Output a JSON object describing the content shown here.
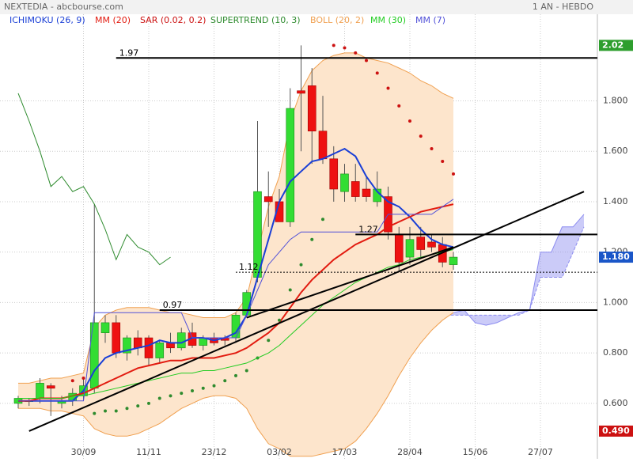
{
  "header": {
    "title": "NEXTEDIA - abcbourse.com",
    "period": "1 AN - HEBDO"
  },
  "chart_data": {
    "type": "candlestick",
    "categories": [
      null,
      null,
      null,
      null,
      null,
      null,
      "30/09",
      null,
      null,
      null,
      null,
      null,
      "11/11",
      null,
      null,
      null,
      null,
      null,
      "23/12",
      null,
      null,
      null,
      null,
      null,
      "03/02",
      null,
      null,
      null,
      null,
      null,
      "17/03",
      null,
      null,
      null,
      null,
      null,
      "28/04",
      null,
      null,
      null,
      null,
      null,
      "15/06",
      null,
      null,
      null,
      null,
      null,
      "27/07",
      null,
      null,
      null,
      null
    ],
    "ylim": [
      0.38,
      2.2
    ],
    "yticks": [
      {
        "value": 0.6,
        "label": "0.600"
      },
      {
        "value": 0.8,
        "label": "0.800"
      },
      {
        "value": 1.0,
        "label": "1.000"
      },
      {
        "value": 1.2,
        "label": "1.200"
      },
      {
        "value": 1.4,
        "label": "1.400"
      },
      {
        "value": 1.6,
        "label": "1.600"
      },
      {
        "value": 1.8,
        "label": "1.800"
      }
    ],
    "grid": true,
    "up_color": "#33dd33",
    "down_color": "#ee1111",
    "open": [
      0.6,
      0.61,
      0.62,
      0.67,
      0.6,
      0.61,
      0.63,
      0.66,
      0.88,
      0.92,
      0.8,
      0.86,
      0.86,
      0.78,
      0.84,
      0.82,
      0.88,
      0.83,
      0.86,
      0.86,
      0.86,
      0.95,
      1.1,
      1.42,
      1.4,
      1.32,
      1.84,
      1.86,
      1.68,
      1.57,
      1.44,
      1.48,
      1.45,
      1.4,
      1.42,
      1.27,
      1.18,
      1.26,
      1.24,
      1.23,
      1.15,
      null,
      null,
      null,
      null,
      null,
      null,
      null,
      null,
      null,
      null,
      null,
      null
    ],
    "high": [
      0.63,
      0.62,
      0.7,
      0.68,
      0.63,
      0.66,
      0.7,
      1.39,
      0.95,
      0.95,
      0.87,
      0.89,
      0.87,
      0.85,
      0.88,
      0.9,
      0.92,
      0.87,
      0.88,
      0.87,
      0.96,
      1.05,
      1.72,
      1.52,
      1.45,
      1.85,
      2.02,
      1.93,
      1.82,
      1.62,
      1.55,
      1.55,
      1.5,
      1.52,
      1.46,
      1.3,
      1.3,
      1.3,
      1.27,
      1.26,
      1.2,
      null,
      null,
      null,
      null,
      null,
      null,
      null,
      null,
      null,
      null,
      null,
      null
    ],
    "low": [
      0.58,
      0.59,
      0.6,
      0.55,
      0.58,
      0.59,
      0.61,
      0.64,
      0.84,
      0.78,
      0.77,
      0.79,
      0.75,
      0.76,
      0.8,
      0.81,
      0.82,
      0.81,
      0.83,
      0.83,
      0.84,
      0.94,
      1.08,
      1.3,
      1.33,
      1.3,
      1.6,
      1.55,
      1.55,
      1.4,
      1.4,
      1.4,
      1.4,
      1.38,
      1.25,
      1.12,
      1.15,
      1.18,
      1.2,
      1.14,
      1.13,
      null,
      null,
      null,
      null,
      null,
      null,
      null,
      null,
      null,
      null,
      null,
      null
    ],
    "close": [
      0.62,
      0.61,
      0.68,
      0.66,
      0.61,
      0.64,
      0.67,
      0.92,
      0.92,
      0.8,
      0.86,
      0.82,
      0.78,
      0.84,
      0.82,
      0.88,
      0.83,
      0.86,
      0.84,
      0.85,
      0.95,
      1.04,
      1.44,
      1.4,
      1.32,
      1.77,
      1.83,
      1.68,
      1.57,
      1.45,
      1.51,
      1.42,
      1.42,
      1.45,
      1.28,
      1.16,
      1.25,
      1.21,
      1.22,
      1.16,
      1.18,
      null,
      null,
      null,
      null,
      null,
      null,
      null,
      null,
      null,
      null,
      null,
      null
    ],
    "series": [
      {
        "name": "ICHIMOKU (26, 9)",
        "kind": "line",
        "color": "#1a3fd6",
        "width": 2,
        "values": [
          0.61,
          0.61,
          0.61,
          0.61,
          0.61,
          0.61,
          0.65,
          0.73,
          0.78,
          0.8,
          0.81,
          0.82,
          0.83,
          0.85,
          0.84,
          0.84,
          0.86,
          0.86,
          0.85,
          0.86,
          0.88,
          0.95,
          1.1,
          1.25,
          1.4,
          1.48,
          1.52,
          1.56,
          1.57,
          1.59,
          1.61,
          1.58,
          1.5,
          1.44,
          1.4,
          1.38,
          1.34,
          1.29,
          1.25,
          1.23,
          1.22,
          null,
          null,
          null,
          null,
          null,
          null,
          null,
          null,
          null,
          null,
          null,
          null
        ],
        "cloud_color": "#8c8cf0",
        "cloud_a": [
          null,
          null,
          null,
          null,
          null,
          null,
          null,
          null,
          null,
          null,
          null,
          null,
          null,
          null,
          null,
          null,
          null,
          null,
          null,
          null,
          null,
          null,
          null,
          null,
          null,
          null,
          null,
          null,
          null,
          null,
          null,
          null,
          null,
          null,
          null,
          null,
          null,
          null,
          0.95,
          0.95,
          0.96,
          0.97,
          0.92,
          0.91,
          0.92,
          0.94,
          0.96,
          0.97,
          1.2,
          1.2,
          1.3,
          1.3,
          1.35
        ],
        "cloud_b": [
          null,
          null,
          null,
          null,
          null,
          null,
          null,
          null,
          null,
          null,
          null,
          null,
          null,
          null,
          null,
          null,
          null,
          null,
          null,
          null,
          null,
          null,
          null,
          null,
          null,
          null,
          null,
          null,
          null,
          null,
          null,
          null,
          null,
          null,
          null,
          null,
          null,
          null,
          0.95,
          0.95,
          0.95,
          0.95,
          0.95,
          0.95,
          0.95,
          0.95,
          0.95,
          0.97,
          1.1,
          1.1,
          1.1,
          1.2,
          1.3
        ]
      },
      {
        "name": "MM (20)",
        "kind": "line",
        "color": "#e21b10",
        "width": 2,
        "values": [
          0.61,
          0.61,
          0.62,
          0.62,
          0.62,
          0.63,
          0.64,
          0.66,
          0.68,
          0.7,
          0.72,
          0.74,
          0.75,
          0.76,
          0.77,
          0.77,
          0.78,
          0.78,
          0.78,
          0.79,
          0.8,
          0.82,
          0.85,
          0.88,
          0.92,
          0.98,
          1.04,
          1.09,
          1.13,
          1.17,
          1.2,
          1.23,
          1.25,
          1.27,
          1.3,
          1.32,
          1.34,
          1.36,
          1.37,
          1.38,
          1.39,
          null,
          null,
          null,
          null,
          null,
          null,
          null,
          null,
          null,
          null,
          null,
          null
        ]
      },
      {
        "name": "SAR (0.02, 0.2)",
        "kind": "dots",
        "color": "#cc1111",
        "color_below": "#2e8b2e",
        "values": [
          null,
          null,
          null,
          null,
          null,
          0.69,
          0.7,
          0.56,
          0.57,
          0.57,
          0.58,
          0.59,
          0.6,
          0.62,
          0.63,
          0.64,
          0.65,
          0.66,
          0.67,
          0.69,
          0.71,
          0.73,
          0.78,
          0.85,
          0.93,
          1.05,
          1.15,
          1.25,
          1.33,
          2.02,
          2.01,
          1.99,
          1.96,
          1.91,
          1.85,
          1.78,
          1.72,
          1.66,
          1.61,
          1.56,
          1.51,
          null,
          null,
          null,
          null,
          null,
          null,
          null,
          null,
          null,
          null,
          null,
          null
        ]
      },
      {
        "name": "SUPERTREND (10, 3)",
        "kind": "line",
        "color": "#2e8b2e",
        "width": 1,
        "values": [
          1.83,
          1.72,
          1.6,
          1.46,
          1.5,
          1.44,
          1.46,
          1.39,
          1.29,
          1.17,
          1.27,
          1.22,
          1.2,
          1.15,
          1.18,
          null,
          null,
          null,
          null,
          null,
          null,
          null,
          null,
          null,
          null,
          null,
          null,
          null,
          null,
          null,
          null,
          null,
          null,
          null,
          null,
          null,
          null,
          null,
          null,
          null,
          null,
          null,
          null,
          null,
          null,
          null,
          null,
          null,
          null,
          null,
          null,
          null,
          null
        ]
      },
      {
        "name": "BOLL (20, 2)",
        "kind": "band",
        "color": "#f0a050",
        "fill": "#fde5cc",
        "upper": [
          0.68,
          0.68,
          0.69,
          0.7,
          0.7,
          0.71,
          0.72,
          0.9,
          0.95,
          0.97,
          0.98,
          0.98,
          0.98,
          0.97,
          0.96,
          0.96,
          0.95,
          0.94,
          0.94,
          0.94,
          0.96,
          1.02,
          1.2,
          1.38,
          1.5,
          1.72,
          1.84,
          1.92,
          1.96,
          1.98,
          1.99,
          1.99,
          1.97,
          1.96,
          1.95,
          1.93,
          1.91,
          1.88,
          1.86,
          1.83,
          1.81,
          null,
          null,
          null,
          null,
          null,
          null,
          null,
          null,
          null,
          null,
          null,
          null
        ],
        "lower": [
          0.58,
          0.58,
          0.58,
          0.57,
          0.57,
          0.56,
          0.55,
          0.5,
          0.48,
          0.47,
          0.47,
          0.48,
          0.5,
          0.52,
          0.55,
          0.58,
          0.6,
          0.62,
          0.63,
          0.63,
          0.62,
          0.58,
          0.5,
          0.44,
          0.42,
          0.39,
          0.39,
          0.39,
          0.4,
          0.41,
          0.42,
          0.45,
          0.5,
          0.56,
          0.63,
          0.71,
          0.78,
          0.84,
          0.89,
          0.93,
          0.96,
          null,
          null,
          null,
          null,
          null,
          null,
          null,
          null,
          null,
          null,
          null,
          null
        ]
      },
      {
        "name": "MM (30)",
        "kind": "line",
        "color": "#22cc22",
        "width": 1,
        "values": [
          0.62,
          0.62,
          0.62,
          0.62,
          0.62,
          0.63,
          0.63,
          0.64,
          0.65,
          0.66,
          0.67,
          0.68,
          0.69,
          0.7,
          0.71,
          0.72,
          0.72,
          0.73,
          0.73,
          0.74,
          0.75,
          0.76,
          0.78,
          0.8,
          0.83,
          0.87,
          0.91,
          0.95,
          0.99,
          1.02,
          1.05,
          1.08,
          1.1,
          1.12,
          1.14,
          1.15,
          1.17,
          1.18,
          1.19,
          1.2,
          1.21,
          null,
          null,
          null,
          null,
          null,
          null,
          null,
          null,
          null,
          null,
          null,
          null
        ]
      },
      {
        "name": "MM (7)",
        "kind": "line",
        "color": "#5050d8",
        "width": 1,
        "values": [
          0.61,
          0.61,
          0.61,
          0.61,
          0.61,
          0.61,
          0.61,
          0.96,
          0.96,
          0.96,
          0.96,
          0.96,
          0.96,
          0.96,
          0.96,
          0.96,
          0.86,
          0.86,
          0.86,
          0.86,
          0.86,
          0.95,
          1.05,
          1.15,
          1.2,
          1.25,
          1.28,
          1.28,
          1.28,
          1.28,
          1.28,
          1.28,
          1.28,
          1.28,
          1.35,
          1.35,
          1.35,
          1.35,
          1.35,
          1.38,
          1.41,
          null,
          null,
          null,
          null,
          null,
          null,
          null,
          null,
          null,
          null,
          null,
          null
        ]
      }
    ],
    "levels": [
      {
        "value": 1.97,
        "x0": 9
      },
      {
        "value": 1.27,
        "x0": 31
      },
      {
        "value": 1.12,
        "x0": 20,
        "dotted": true
      },
      {
        "value": 0.97,
        "x0": 13
      }
    ],
    "trendlines": [
      {
        "x": [
          1,
          52
        ],
        "y": [
          0.49,
          1.44
        ]
      },
      {
        "x": [
          21,
          40
        ],
        "y": [
          0.94,
          1.22
        ]
      }
    ],
    "price_tags": [
      {
        "value": 2.02,
        "color": "#2e9e2e"
      },
      {
        "value": 1.18,
        "label": "1.180",
        "color": "#1a56c8"
      },
      {
        "value": 0.49,
        "label": "0.490",
        "color": "#cc1111"
      }
    ]
  }
}
